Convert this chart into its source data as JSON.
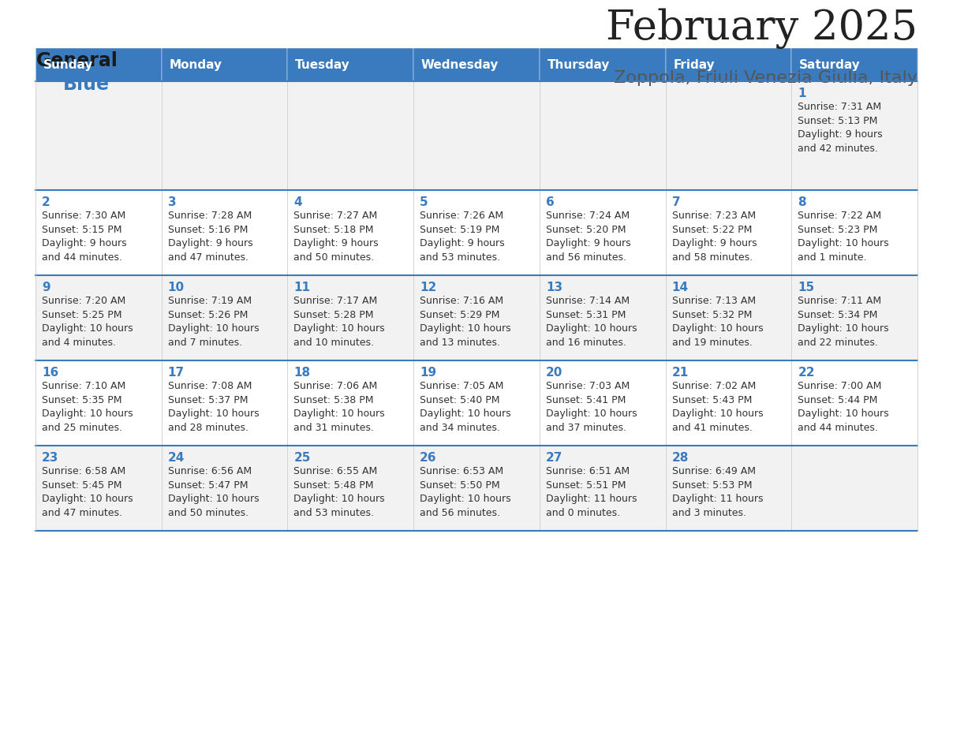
{
  "title": "February 2025",
  "subtitle": "Zoppola, Friuli Venezia Giulia, Italy",
  "header_color": "#3a7bbf",
  "header_text_color": "#ffffff",
  "cell_bg_even": "#f2f2f2",
  "cell_bg_odd": "#ffffff",
  "day_number_color": "#3a7bbf",
  "text_color": "#333333",
  "border_color": "#3a7bbf",
  "days_of_week": [
    "Sunday",
    "Monday",
    "Tuesday",
    "Wednesday",
    "Thursday",
    "Friday",
    "Saturday"
  ],
  "weeks": [
    [
      {
        "day": null,
        "sunrise": null,
        "sunset": null,
        "daylight_line1": null,
        "daylight_line2": null
      },
      {
        "day": null,
        "sunrise": null,
        "sunset": null,
        "daylight_line1": null,
        "daylight_line2": null
      },
      {
        "day": null,
        "sunrise": null,
        "sunset": null,
        "daylight_line1": null,
        "daylight_line2": null
      },
      {
        "day": null,
        "sunrise": null,
        "sunset": null,
        "daylight_line1": null,
        "daylight_line2": null
      },
      {
        "day": null,
        "sunrise": null,
        "sunset": null,
        "daylight_line1": null,
        "daylight_line2": null
      },
      {
        "day": null,
        "sunrise": null,
        "sunset": null,
        "daylight_line1": null,
        "daylight_line2": null
      },
      {
        "day": "1",
        "sunrise": "Sunrise: 7:31 AM",
        "sunset": "Sunset: 5:13 PM",
        "daylight_line1": "Daylight: 9 hours",
        "daylight_line2": "and 42 minutes."
      }
    ],
    [
      {
        "day": "2",
        "sunrise": "Sunrise: 7:30 AM",
        "sunset": "Sunset: 5:15 PM",
        "daylight_line1": "Daylight: 9 hours",
        "daylight_line2": "and 44 minutes."
      },
      {
        "day": "3",
        "sunrise": "Sunrise: 7:28 AM",
        "sunset": "Sunset: 5:16 PM",
        "daylight_line1": "Daylight: 9 hours",
        "daylight_line2": "and 47 minutes."
      },
      {
        "day": "4",
        "sunrise": "Sunrise: 7:27 AM",
        "sunset": "Sunset: 5:18 PM",
        "daylight_line1": "Daylight: 9 hours",
        "daylight_line2": "and 50 minutes."
      },
      {
        "day": "5",
        "sunrise": "Sunrise: 7:26 AM",
        "sunset": "Sunset: 5:19 PM",
        "daylight_line1": "Daylight: 9 hours",
        "daylight_line2": "and 53 minutes."
      },
      {
        "day": "6",
        "sunrise": "Sunrise: 7:24 AM",
        "sunset": "Sunset: 5:20 PM",
        "daylight_line1": "Daylight: 9 hours",
        "daylight_line2": "and 56 minutes."
      },
      {
        "day": "7",
        "sunrise": "Sunrise: 7:23 AM",
        "sunset": "Sunset: 5:22 PM",
        "daylight_line1": "Daylight: 9 hours",
        "daylight_line2": "and 58 minutes."
      },
      {
        "day": "8",
        "sunrise": "Sunrise: 7:22 AM",
        "sunset": "Sunset: 5:23 PM",
        "daylight_line1": "Daylight: 10 hours",
        "daylight_line2": "and 1 minute."
      }
    ],
    [
      {
        "day": "9",
        "sunrise": "Sunrise: 7:20 AM",
        "sunset": "Sunset: 5:25 PM",
        "daylight_line1": "Daylight: 10 hours",
        "daylight_line2": "and 4 minutes."
      },
      {
        "day": "10",
        "sunrise": "Sunrise: 7:19 AM",
        "sunset": "Sunset: 5:26 PM",
        "daylight_line1": "Daylight: 10 hours",
        "daylight_line2": "and 7 minutes."
      },
      {
        "day": "11",
        "sunrise": "Sunrise: 7:17 AM",
        "sunset": "Sunset: 5:28 PM",
        "daylight_line1": "Daylight: 10 hours",
        "daylight_line2": "and 10 minutes."
      },
      {
        "day": "12",
        "sunrise": "Sunrise: 7:16 AM",
        "sunset": "Sunset: 5:29 PM",
        "daylight_line1": "Daylight: 10 hours",
        "daylight_line2": "and 13 minutes."
      },
      {
        "day": "13",
        "sunrise": "Sunrise: 7:14 AM",
        "sunset": "Sunset: 5:31 PM",
        "daylight_line1": "Daylight: 10 hours",
        "daylight_line2": "and 16 minutes."
      },
      {
        "day": "14",
        "sunrise": "Sunrise: 7:13 AM",
        "sunset": "Sunset: 5:32 PM",
        "daylight_line1": "Daylight: 10 hours",
        "daylight_line2": "and 19 minutes."
      },
      {
        "day": "15",
        "sunrise": "Sunrise: 7:11 AM",
        "sunset": "Sunset: 5:34 PM",
        "daylight_line1": "Daylight: 10 hours",
        "daylight_line2": "and 22 minutes."
      }
    ],
    [
      {
        "day": "16",
        "sunrise": "Sunrise: 7:10 AM",
        "sunset": "Sunset: 5:35 PM",
        "daylight_line1": "Daylight: 10 hours",
        "daylight_line2": "and 25 minutes."
      },
      {
        "day": "17",
        "sunrise": "Sunrise: 7:08 AM",
        "sunset": "Sunset: 5:37 PM",
        "daylight_line1": "Daylight: 10 hours",
        "daylight_line2": "and 28 minutes."
      },
      {
        "day": "18",
        "sunrise": "Sunrise: 7:06 AM",
        "sunset": "Sunset: 5:38 PM",
        "daylight_line1": "Daylight: 10 hours",
        "daylight_line2": "and 31 minutes."
      },
      {
        "day": "19",
        "sunrise": "Sunrise: 7:05 AM",
        "sunset": "Sunset: 5:40 PM",
        "daylight_line1": "Daylight: 10 hours",
        "daylight_line2": "and 34 minutes."
      },
      {
        "day": "20",
        "sunrise": "Sunrise: 7:03 AM",
        "sunset": "Sunset: 5:41 PM",
        "daylight_line1": "Daylight: 10 hours",
        "daylight_line2": "and 37 minutes."
      },
      {
        "day": "21",
        "sunrise": "Sunrise: 7:02 AM",
        "sunset": "Sunset: 5:43 PM",
        "daylight_line1": "Daylight: 10 hours",
        "daylight_line2": "and 41 minutes."
      },
      {
        "day": "22",
        "sunrise": "Sunrise: 7:00 AM",
        "sunset": "Sunset: 5:44 PM",
        "daylight_line1": "Daylight: 10 hours",
        "daylight_line2": "and 44 minutes."
      }
    ],
    [
      {
        "day": "23",
        "sunrise": "Sunrise: 6:58 AM",
        "sunset": "Sunset: 5:45 PM",
        "daylight_line1": "Daylight: 10 hours",
        "daylight_line2": "and 47 minutes."
      },
      {
        "day": "24",
        "sunrise": "Sunrise: 6:56 AM",
        "sunset": "Sunset: 5:47 PM",
        "daylight_line1": "Daylight: 10 hours",
        "daylight_line2": "and 50 minutes."
      },
      {
        "day": "25",
        "sunrise": "Sunrise: 6:55 AM",
        "sunset": "Sunset: 5:48 PM",
        "daylight_line1": "Daylight: 10 hours",
        "daylight_line2": "and 53 minutes."
      },
      {
        "day": "26",
        "sunrise": "Sunrise: 6:53 AM",
        "sunset": "Sunset: 5:50 PM",
        "daylight_line1": "Daylight: 10 hours",
        "daylight_line2": "and 56 minutes."
      },
      {
        "day": "27",
        "sunrise": "Sunrise: 6:51 AM",
        "sunset": "Sunset: 5:51 PM",
        "daylight_line1": "Daylight: 11 hours",
        "daylight_line2": "and 0 minutes."
      },
      {
        "day": "28",
        "sunrise": "Sunrise: 6:49 AM",
        "sunset": "Sunset: 5:53 PM",
        "daylight_line1": "Daylight: 11 hours",
        "daylight_line2": "and 3 minutes."
      },
      {
        "day": null,
        "sunrise": null,
        "sunset": null,
        "daylight_line1": null,
        "daylight_line2": null
      }
    ]
  ],
  "logo_general_color": "#1a1a1a",
  "logo_blue_color": "#3a7bbf",
  "title_fontsize": 38,
  "subtitle_fontsize": 16,
  "header_fontsize": 11,
  "day_num_fontsize": 11,
  "cell_text_fontsize": 9
}
